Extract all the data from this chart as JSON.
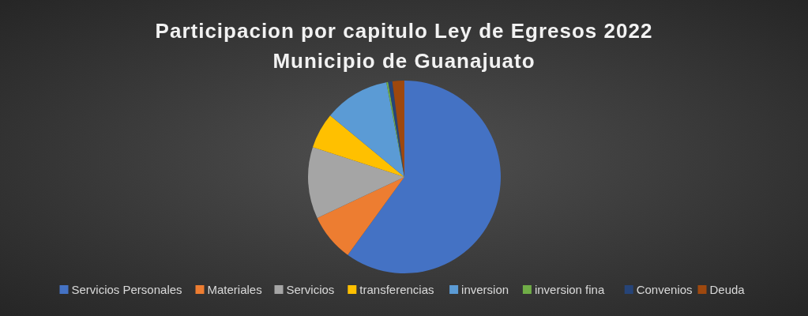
{
  "chart_data": {
    "type": "pie",
    "title": "Participacion por capitulo Ley de Egresos 2022",
    "subtitle": "Municipio de Guanajuato",
    "categories": [
      "Servicios Personales",
      "Materiales",
      "Servicios",
      "transferencias",
      "inversion",
      "inversion fina",
      "Convenios",
      "Deuda"
    ],
    "values": [
      60,
      8,
      12,
      6,
      11,
      0.3,
      0.7,
      2
    ],
    "colors": [
      "#4472c4",
      "#ed7d31",
      "#a5a5a5",
      "#ffc000",
      "#5b9bd5",
      "#70ad47",
      "#264478",
      "#9e480e"
    ],
    "legend": "bottom"
  }
}
